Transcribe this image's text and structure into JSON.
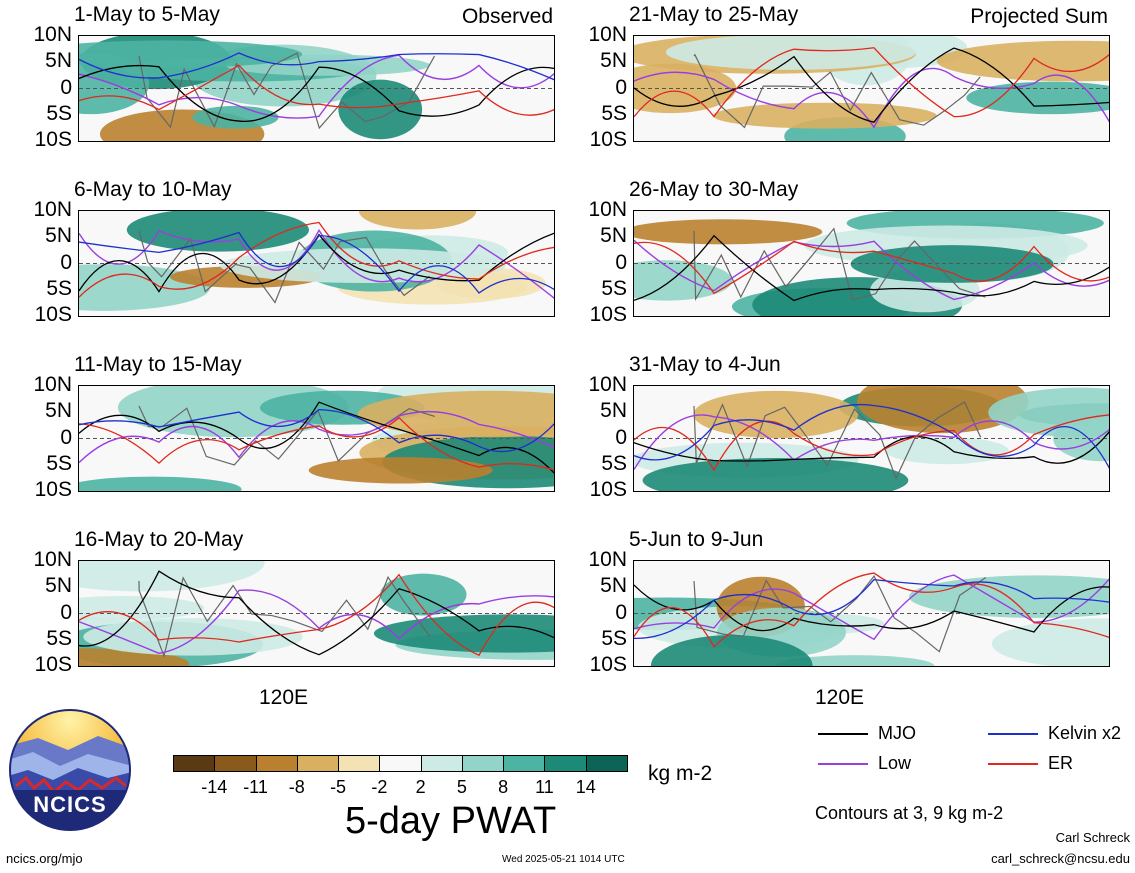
{
  "chart_data": {
    "type": "heatmap",
    "title": "5-day PWAT",
    "units": "kg m-2",
    "contours_note": "Contours at 3, 9 kg m-2",
    "y_ticks": [
      "10N",
      "5N",
      "0",
      "5S",
      "10S"
    ],
    "x_tick": "120E",
    "panels": [
      {
        "period": "1-May to 5-May",
        "label": "Observed"
      },
      {
        "period": "6-May to 10-May",
        "label": ""
      },
      {
        "period": "11-May to 15-May",
        "label": ""
      },
      {
        "period": "16-May to 20-May",
        "label": ""
      },
      {
        "period": "21-May to 25-May",
        "label": "Projected Sum"
      },
      {
        "period": "26-May to 30-May",
        "label": ""
      },
      {
        "period": "31-May to 4-Jun",
        "label": ""
      },
      {
        "period": "5-Jun to 9-Jun",
        "label": ""
      }
    ],
    "colorbar": {
      "labels": [
        "-14",
        "-11",
        "-8",
        "-5",
        "-2",
        "2",
        "5",
        "8",
        "11",
        "14"
      ],
      "colors": [
        "#5a3a12",
        "#8a5a1c",
        "#b9812f",
        "#d9b061",
        "#f3e2b3",
        "#f8f8f8",
        "#cdeae4",
        "#92d4c8",
        "#4db3a2",
        "#1d8977",
        "#0b6455"
      ]
    },
    "legend": [
      {
        "name": "MJO",
        "color": "#000000"
      },
      {
        "name": "Kelvin x2",
        "color": "#1f2fcf"
      },
      {
        "name": "Low",
        "color": "#9a3ee0"
      },
      {
        "name": "ER",
        "color": "#e0281e"
      }
    ]
  },
  "footer": {
    "logo_text": "NCICS",
    "url": "ncics.org/mjo",
    "timestamp": "Wed 2025-05-21 1014 UTC",
    "author": "Carl Schreck",
    "email": "carl_schreck@ncsu.edu"
  }
}
